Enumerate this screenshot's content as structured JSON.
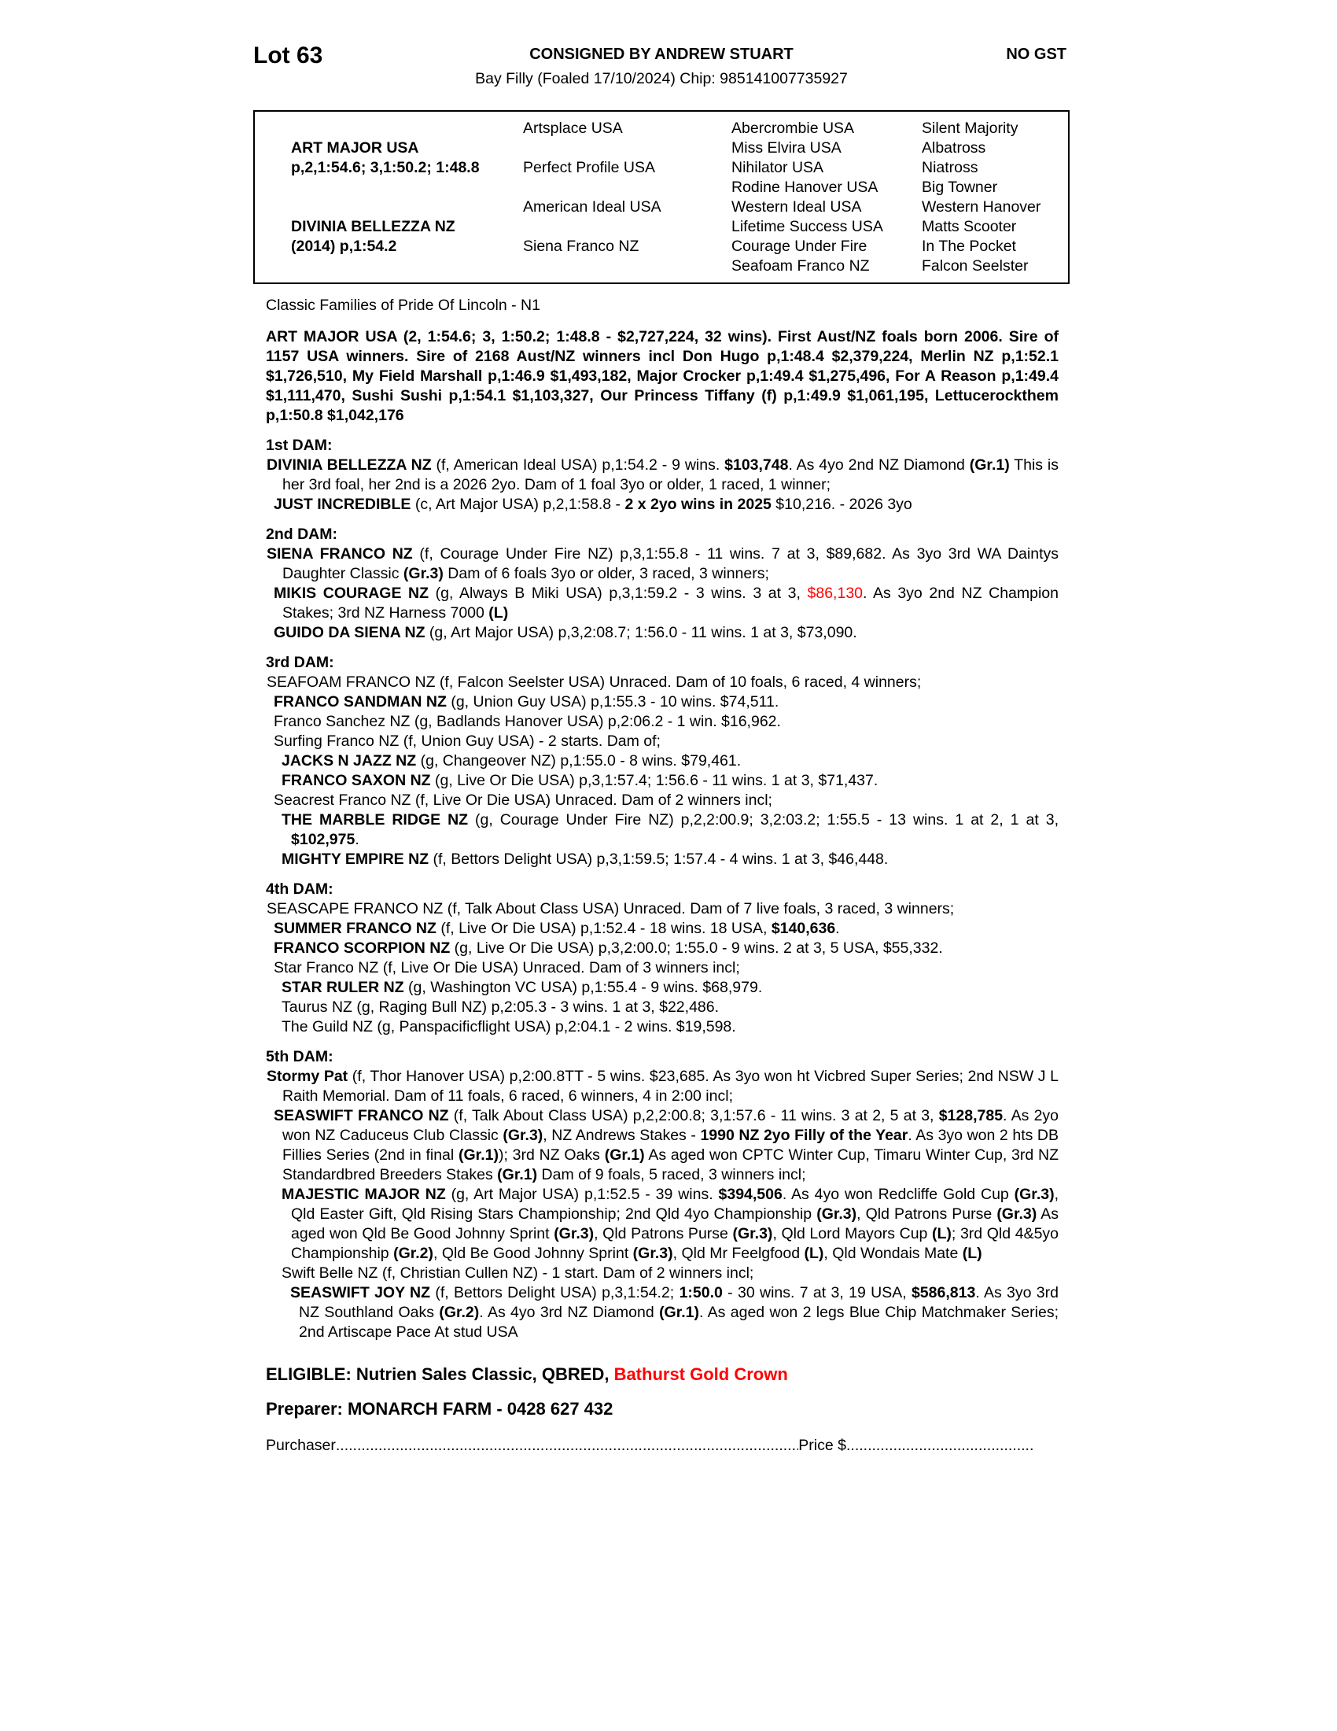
{
  "colors": {
    "text": "#000000",
    "accent_red": "#ff0000",
    "background": "#ffffff"
  },
  "header": {
    "lot": "Lot 63",
    "consigned": "CONSIGNED BY ANDREW STUART",
    "gst": "NO GST",
    "foal_info": "Bay Filly (Foaled 17/10/2024) Chip: 985141007735927"
  },
  "pedigree": {
    "sire": {
      "name": "ART MAJOR USA",
      "record": "p,2,1:54.6; 3,1:50.2; 1:48.8"
    },
    "dam": {
      "name": "DIVINIA BELLEZZA NZ",
      "record": "(2014) p,1:54.2"
    },
    "gen2": [
      "Artsplace USA",
      "Perfect Profile USA",
      "American Ideal USA",
      "Siena Franco NZ"
    ],
    "gen3": [
      "Abercrombie USA",
      "Miss Elvira USA",
      "Nihilator USA",
      "Rodine Hanover USA",
      "Western Ideal USA",
      "Lifetime Success USA",
      "Courage Under Fire",
      "Seafoam Franco NZ"
    ],
    "gen4": [
      "Silent Majority",
      "Albatross",
      "Niatross",
      "Big Towner",
      "Western Hanover",
      "Matts Scooter",
      "In The Pocket",
      "Falcon Seelster"
    ]
  },
  "classic_families": "Classic Families of Pride Of Lincoln - N1",
  "sire_para": [
    {
      "t": "ART MAJOR USA (2, 1:54.6; 3, 1:50.2; 1:48.8 - $2,727,224, 32 wins). First Aust/NZ foals born 2006. Sire of 1157 USA winners. Sire of 2168 Aust/NZ winners incl Don Hugo p,1:48.4 $2,379,224, Merlin NZ p,1:52.1 $1,726,510, My Field Marshall p,1:46.9 $1,493,182, Major Crocker p,1:49.4 $1,275,496, For A Reason p,1:49.4 $1,111,470, Sushi Sushi p,1:54.1 $1,103,327, Our Princess Tiffany (f) p,1:49.9 $1,061,195, Lettucerockthem p,1:50.8 $1,042,176",
      "b": true
    }
  ],
  "dam_sections": [
    {
      "heading": "1st DAM:",
      "entries": [
        {
          "lv": 0,
          "seg": [
            {
              "t": "DIVINIA BELLEZZA NZ",
              "b": true
            },
            {
              "t": " (f, American Ideal USA) p,1:54.2 - 9 wins. "
            },
            {
              "t": "$103,748",
              "b": true
            },
            {
              "t": ". As 4yo 2nd NZ Diamond "
            },
            {
              "t": "(Gr.1)",
              "b": true
            },
            {
              "t": " This is her 3rd foal, her 2nd is a 2026 2yo. Dam of 1 foal 3yo or older, 1 raced, 1 winner;"
            }
          ]
        },
        {
          "lv": 1,
          "seg": [
            {
              "t": "JUST INCREDIBLE",
              "b": true
            },
            {
              "t": " (c, Art Major USA) p,2,1:58.8 - "
            },
            {
              "t": "2 x 2yo wins in 2025",
              "b": true
            },
            {
              "t": " $10,216. - 2026 3yo"
            }
          ]
        }
      ]
    },
    {
      "heading": "2nd DAM:",
      "entries": [
        {
          "lv": 0,
          "seg": [
            {
              "t": "SIENA FRANCO NZ",
              "b": true
            },
            {
              "t": " (f, Courage Under Fire NZ) p,3,1:55.8 - 11 wins. 7 at 3, $89,682. As 3yo 3rd WA Daintys Daughter Classic "
            },
            {
              "t": "(Gr.3)",
              "b": true
            },
            {
              "t": " Dam of 6 foals 3yo or older, 3 raced, 3 winners;"
            }
          ]
        },
        {
          "lv": 1,
          "seg": [
            {
              "t": "MIKIS COURAGE NZ",
              "b": true
            },
            {
              "t": " (g, Always B Miki USA) p,3,1:59.2 - 3 wins. 3 at 3, "
            },
            {
              "t": "$86,130",
              "r": true
            },
            {
              "t": ". As 3yo 2nd NZ Champion Stakes; 3rd NZ Harness 7000 "
            },
            {
              "t": "(L)",
              "b": true
            }
          ]
        },
        {
          "lv": 1,
          "seg": [
            {
              "t": "GUIDO DA SIENA NZ",
              "b": true
            },
            {
              "t": " (g, Art Major USA) p,3,2:08.7; 1:56.0 - 11 wins. 1 at 3, $73,090."
            }
          ]
        }
      ]
    },
    {
      "heading": "3rd DAM:",
      "entries": [
        {
          "lv": 0,
          "seg": [
            {
              "t": "SEAFOAM FRANCO NZ (f, Falcon Seelster USA) Unraced. Dam of 10 foals, 6 raced, 4 winners;"
            }
          ]
        },
        {
          "lv": 1,
          "seg": [
            {
              "t": "FRANCO SANDMAN NZ",
              "b": true
            },
            {
              "t": " (g, Union Guy USA) p,1:55.3 - 10 wins. $74,511."
            }
          ]
        },
        {
          "lv": 1,
          "seg": [
            {
              "t": "Franco Sanchez NZ (g, Badlands Hanover USA) p,2:06.2 - 1 win. $16,962."
            }
          ]
        },
        {
          "lv": 1,
          "seg": [
            {
              "t": "Surfing Franco NZ (f, Union Guy USA) - 2 starts. Dam of;"
            }
          ]
        },
        {
          "lv": 2,
          "seg": [
            {
              "t": "JACKS N JAZZ NZ",
              "b": true
            },
            {
              "t": " (g, Changeover NZ) p,1:55.0 - 8 wins. $79,461."
            }
          ]
        },
        {
          "lv": 2,
          "seg": [
            {
              "t": "FRANCO SAXON NZ",
              "b": true
            },
            {
              "t": " (g, Live Or Die USA) p,3,1:57.4; 1:56.6 - 11 wins. 1 at 3, $71,437."
            }
          ]
        },
        {
          "lv": 1,
          "seg": [
            {
              "t": "Seacrest Franco NZ (f, Live Or Die USA) Unraced. Dam of 2 winners incl;"
            }
          ]
        },
        {
          "lv": 2,
          "seg": [
            {
              "t": "THE MARBLE RIDGE NZ",
              "b": true
            },
            {
              "t": " (g, Courage Under Fire NZ) p,2,2:00.9; 3,2:03.2; 1:55.5 - 13 wins. 1 at 2, 1 at 3, "
            },
            {
              "t": "$102,975",
              "b": true
            },
            {
              "t": "."
            }
          ]
        },
        {
          "lv": 2,
          "seg": [
            {
              "t": "MIGHTY EMPIRE NZ",
              "b": true
            },
            {
              "t": " (f, Bettors Delight USA) p,3,1:59.5; 1:57.4 - 4 wins. 1 at 3, $46,448."
            }
          ]
        }
      ]
    },
    {
      "heading": "4th DAM:",
      "entries": [
        {
          "lv": 0,
          "seg": [
            {
              "t": "SEASCAPE FRANCO NZ (f, Talk About Class USA) Unraced. Dam of 7 live foals, 3 raced, 3 winners;"
            }
          ]
        },
        {
          "lv": 1,
          "seg": [
            {
              "t": "SUMMER FRANCO NZ",
              "b": true
            },
            {
              "t": " (f, Live Or Die USA) p,1:52.4 - 18 wins. 18 USA, "
            },
            {
              "t": "$140,636",
              "b": true
            },
            {
              "t": "."
            }
          ]
        },
        {
          "lv": 1,
          "seg": [
            {
              "t": "FRANCO SCORPION NZ",
              "b": true
            },
            {
              "t": " (g, Live Or Die USA) p,3,2:00.0; 1:55.0 - 9 wins. 2 at 3, 5 USA, $55,332."
            }
          ]
        },
        {
          "lv": 1,
          "seg": [
            {
              "t": "Star Franco NZ (f, Live Or Die USA) Unraced. Dam of 3 winners incl;"
            }
          ]
        },
        {
          "lv": 2,
          "seg": [
            {
              "t": "STAR RULER NZ",
              "b": true
            },
            {
              "t": " (g, Washington VC USA) p,1:55.4 - 9 wins. $68,979."
            }
          ]
        },
        {
          "lv": 2,
          "seg": [
            {
              "t": "Taurus NZ (g, Raging Bull NZ) p,2:05.3 - 3 wins. 1 at 3, $22,486."
            }
          ]
        },
        {
          "lv": 2,
          "seg": [
            {
              "t": "The Guild NZ (g, Panspacificflight USA) p,2:04.1 - 2 wins. $19,598."
            }
          ]
        }
      ]
    },
    {
      "heading": "5th DAM:",
      "entries": [
        {
          "lv": 0,
          "seg": [
            {
              "t": "Stormy Pat",
              "b": true
            },
            {
              "t": " (f, Thor Hanover USA) p,2:00.8TT - 5 wins. $23,685. As 3yo won ht Vicbred Super Series; 2nd NSW J L Raith Memorial. Dam of 11 foals, 6 raced, 6 winners, 4 in 2:00 incl;"
            }
          ]
        },
        {
          "lv": 1,
          "seg": [
            {
              "t": "SEASWIFT FRANCO NZ",
              "b": true
            },
            {
              "t": " (f, Talk About Class USA) p,2,2:00.8; 3,1:57.6 - 11 wins. 3 at 2, 5 at 3, "
            },
            {
              "t": "$128,785",
              "b": true
            },
            {
              "t": ". As 2yo won NZ Caduceus Club Classic "
            },
            {
              "t": "(Gr.3)",
              "b": true
            },
            {
              "t": ", NZ Andrews Stakes - "
            },
            {
              "t": "1990 NZ 2yo Filly of the Year",
              "b": true
            },
            {
              "t": ". As 3yo won 2 hts DB Fillies Series (2nd in final "
            },
            {
              "t": "(Gr.1)",
              "b": true
            },
            {
              "t": "); 3rd NZ Oaks "
            },
            {
              "t": "(Gr.1)",
              "b": true
            },
            {
              "t": " As aged won CPTC Winter Cup, Timaru Winter Cup, 3rd NZ Standardbred Breeders Stakes "
            },
            {
              "t": "(Gr.1)",
              "b": true
            },
            {
              "t": " Dam of 9 foals, 5 raced, 3 winners incl;"
            }
          ]
        },
        {
          "lv": 2,
          "seg": [
            {
              "t": "MAJESTIC MAJOR NZ",
              "b": true
            },
            {
              "t": " (g, Art Major USA) p,1:52.5 - 39 wins. "
            },
            {
              "t": "$394,506",
              "b": true
            },
            {
              "t": ". As 4yo won Redcliffe Gold Cup "
            },
            {
              "t": "(Gr.3)",
              "b": true
            },
            {
              "t": ", Qld Easter Gift, Qld Rising Stars Championship; 2nd Qld 4yo Championship "
            },
            {
              "t": "(Gr.3)",
              "b": true
            },
            {
              "t": ", Qld Patrons Purse "
            },
            {
              "t": "(Gr.3)",
              "b": true
            },
            {
              "t": " As aged won Qld Be Good Johnny Sprint "
            },
            {
              "t": "(Gr.3)",
              "b": true
            },
            {
              "t": ", Qld Patrons Purse "
            },
            {
              "t": "(Gr.3)",
              "b": true
            },
            {
              "t": ", Qld Lord Mayors Cup "
            },
            {
              "t": "(L)",
              "b": true
            },
            {
              "t": "; 3rd Qld 4&5yo Championship "
            },
            {
              "t": "(Gr.2)",
              "b": true
            },
            {
              "t": ", Qld Be Good Johnny Sprint "
            },
            {
              "t": "(Gr.3)",
              "b": true
            },
            {
              "t": ", Qld Mr Feelgfood "
            },
            {
              "t": "(L)",
              "b": true
            },
            {
              "t": ", Qld Wondais Mate "
            },
            {
              "t": "(L)",
              "b": true
            }
          ]
        },
        {
          "lv": 2,
          "seg": [
            {
              "t": "Swift Belle NZ (f, Christian Cullen NZ) - 1 start. Dam of 2 winners incl;"
            }
          ]
        },
        {
          "lv": 3,
          "seg": [
            {
              "t": "SEASWIFT JOY NZ",
              "b": true
            },
            {
              "t": " (f, Bettors Delight USA) p,3,1:54.2; "
            },
            {
              "t": "1:50.0",
              "b": true
            },
            {
              "t": " - 30 wins. 7 at 3, 19 USA, "
            },
            {
              "t": "$586,813",
              "b": true
            },
            {
              "t": ". As 3yo 3rd NZ Southland Oaks "
            },
            {
              "t": "(Gr.2)",
              "b": true
            },
            {
              "t": ". As 4yo 3rd NZ Diamond "
            },
            {
              "t": "(Gr.1)",
              "b": true
            },
            {
              "t": ". As aged won 2 legs Blue Chip Matchmaker Series; 2nd Artiscape Pace At stud USA"
            }
          ]
        }
      ]
    }
  ],
  "eligible": [
    {
      "t": "ELIGIBLE: Nutrien Sales Classic, QBRED, ",
      "b": true
    },
    {
      "t": "Bathurst Gold Crown",
      "b": true,
      "r": true
    }
  ],
  "preparer": "Preparer: MONARCH FARM - 0428 627 432",
  "purchaser_line": {
    "purchaser_label": "Purchaser",
    "price_label": "Price $",
    "dots": "...................................................................................................................................................................................."
  }
}
